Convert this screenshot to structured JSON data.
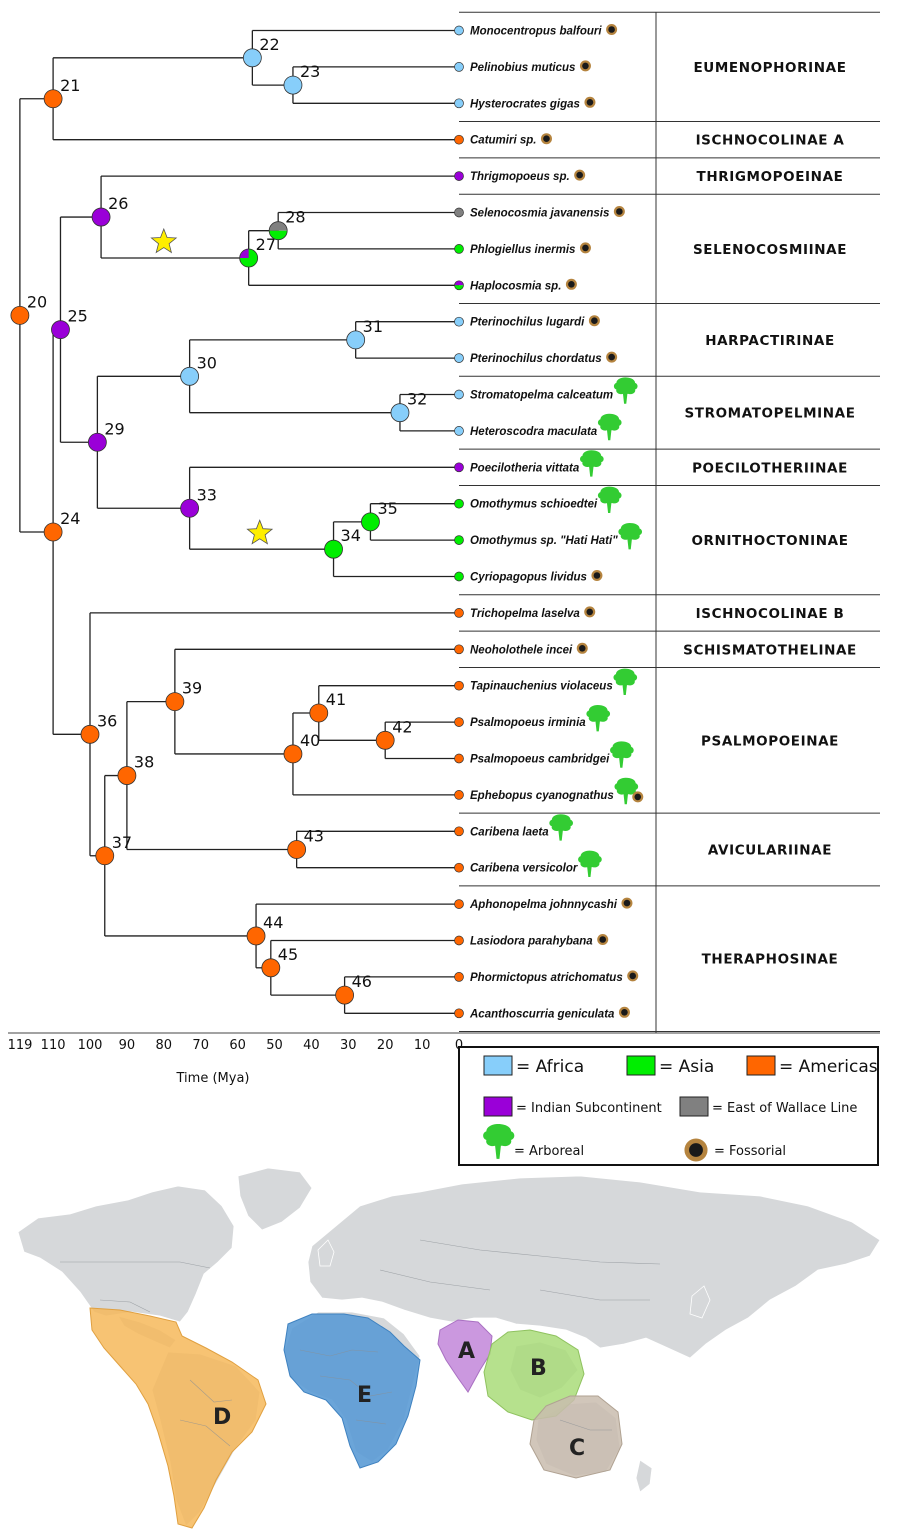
{
  "regions": {
    "africa": {
      "label": "= Africa",
      "color": "#87CEFA"
    },
    "asia": {
      "label": "= Asia",
      "color": "#00EE00"
    },
    "americas": {
      "label": "= Americas",
      "color": "#FF6600"
    },
    "india": {
      "label": "= Indian Subcontinent",
      "color": "#9A00D8"
    },
    "wallace": {
      "label": "= East of Wallace Line",
      "color": "#808080"
    }
  },
  "habits": {
    "arboreal": {
      "label": "= Arboreal",
      "icon": "tree-icon",
      "color": "#33cc33"
    },
    "fossorial": {
      "label": "= Fossorial",
      "icon": "burrow-icon",
      "color": "#222222"
    }
  },
  "axis": {
    "title": "Time (Mya)",
    "ticks": [
      "119",
      "110",
      "100",
      "90",
      "80",
      "70",
      "60",
      "50",
      "40",
      "30",
      "20",
      "10",
      "0"
    ]
  },
  "tips": [
    {
      "name": "Monocentropus balfouri",
      "region": "africa",
      "habit": "fossorial"
    },
    {
      "name": "Pelinobius muticus",
      "region": "africa",
      "habit": "fossorial"
    },
    {
      "name": "Hysterocrates gigas",
      "region": "africa",
      "habit": "fossorial"
    },
    {
      "name": "Catumiri sp.",
      "region": "americas",
      "habit": "fossorial"
    },
    {
      "name": "Thrigmopoeus sp.",
      "region": "india",
      "habit": "fossorial"
    },
    {
      "name": "Selenocosmia javanensis",
      "region": "wallace",
      "habit": "fossorial"
    },
    {
      "name": "Phlogiellus inermis",
      "region": "asia",
      "habit": "fossorial"
    },
    {
      "name": "Haplocosmia sp.",
      "region": "india_asia",
      "habit": "fossorial"
    },
    {
      "name": "Pterinochilus lugardi",
      "region": "africa",
      "habit": "fossorial"
    },
    {
      "name": "Pterinochilus chordatus",
      "region": "africa",
      "habit": "fossorial"
    },
    {
      "name": "Stromatopelma calceatum",
      "region": "africa",
      "habit": "arboreal"
    },
    {
      "name": "Heteroscodra maculata",
      "region": "africa",
      "habit": "arboreal"
    },
    {
      "name": "Poecilotheria vittata",
      "region": "india",
      "habit": "arboreal"
    },
    {
      "name": "Omothymus schioedtei",
      "region": "asia",
      "habit": "arboreal"
    },
    {
      "name": "Omothymus sp. \"Hati Hati\"",
      "region": "asia",
      "habit": "arboreal"
    },
    {
      "name": "Cyriopagopus lividus",
      "region": "asia",
      "habit": "fossorial"
    },
    {
      "name": "Trichopelma laselva",
      "region": "americas",
      "habit": "fossorial"
    },
    {
      "name": "Neoholothele incei",
      "region": "americas",
      "habit": "fossorial"
    },
    {
      "name": "Tapinauchenius violaceus",
      "region": "americas",
      "habit": "arboreal"
    },
    {
      "name": "Psalmopoeus irminia",
      "region": "americas",
      "habit": "arboreal"
    },
    {
      "name": "Psalmopoeus cambridgei",
      "region": "americas",
      "habit": "arboreal"
    },
    {
      "name": "Ephebopus cyanognathus",
      "region": "americas",
      "habit": "both"
    },
    {
      "name": "Caribena laeta",
      "region": "americas",
      "habit": "arboreal"
    },
    {
      "name": "Caribena versicolor",
      "region": "americas",
      "habit": "arboreal"
    },
    {
      "name": "Aphonopelma johnnycashi",
      "region": "americas",
      "habit": "fossorial"
    },
    {
      "name": "Lasiodora parahybana",
      "region": "americas",
      "habit": "fossorial"
    },
    {
      "name": "Phormictopus atrichomatus",
      "region": "americas",
      "habit": "fossorial"
    },
    {
      "name": "Acanthoscurria geniculata",
      "region": "americas",
      "habit": "fossorial"
    }
  ],
  "nodes": [
    {
      "id": "20",
      "age": 119,
      "state": [
        "americas"
      ],
      "children": [
        "21",
        "24"
      ]
    },
    {
      "id": "21",
      "age": 110,
      "state": [
        "americas"
      ],
      "children": [
        "22",
        "t3"
      ]
    },
    {
      "id": "22",
      "age": 56,
      "state": [
        "africa"
      ],
      "children": [
        "t0",
        "23"
      ]
    },
    {
      "id": "23",
      "age": 45,
      "state": [
        "africa"
      ],
      "children": [
        "t1",
        "t2"
      ]
    },
    {
      "id": "24",
      "age": 110,
      "state": [
        "americas"
      ],
      "children": [
        "25",
        "36"
      ]
    },
    {
      "id": "25",
      "age": 108,
      "state": [
        "india"
      ],
      "children": [
        "26",
        "29"
      ]
    },
    {
      "id": "26",
      "age": 97,
      "state": [
        "india"
      ],
      "children": [
        "t4",
        "27"
      ]
    },
    {
      "id": "27",
      "age": 57,
      "state": [
        "india",
        "asia"
      ],
      "children": [
        "28",
        "t7"
      ]
    },
    {
      "id": "28",
      "age": 49,
      "state": [
        "wallace",
        "asia"
      ],
      "children": [
        "t5",
        "t6"
      ]
    },
    {
      "id": "29",
      "age": 98,
      "state": [
        "india"
      ],
      "children": [
        "30",
        "33"
      ]
    },
    {
      "id": "30",
      "age": 73,
      "state": [
        "africa"
      ],
      "children": [
        "31",
        "32"
      ]
    },
    {
      "id": "31",
      "age": 28,
      "state": [
        "africa"
      ],
      "children": [
        "t8",
        "t9"
      ]
    },
    {
      "id": "32",
      "age": 16,
      "state": [
        "africa"
      ],
      "children": [
        "t10",
        "t11"
      ]
    },
    {
      "id": "33",
      "age": 73,
      "state": [
        "india"
      ],
      "children": [
        "t12",
        "34"
      ]
    },
    {
      "id": "34",
      "age": 34,
      "state": [
        "asia"
      ],
      "children": [
        "35",
        "t15"
      ]
    },
    {
      "id": "35",
      "age": 24,
      "state": [
        "asia"
      ],
      "children": [
        "t13",
        "t14"
      ]
    },
    {
      "id": "36",
      "age": 100,
      "state": [
        "americas"
      ],
      "children": [
        "t16",
        "37"
      ]
    },
    {
      "id": "37",
      "age": 96,
      "state": [
        "americas"
      ],
      "children": [
        "38",
        "44"
      ]
    },
    {
      "id": "38",
      "age": 90,
      "state": [
        "americas"
      ],
      "children": [
        "39",
        "43"
      ]
    },
    {
      "id": "39",
      "age": 77,
      "state": [
        "americas"
      ],
      "children": [
        "t17",
        "40"
      ]
    },
    {
      "id": "40",
      "age": 45,
      "state": [
        "americas"
      ],
      "children": [
        "41",
        "t21"
      ]
    },
    {
      "id": "41",
      "age": 38,
      "state": [
        "americas"
      ],
      "children": [
        "t18",
        "42"
      ]
    },
    {
      "id": "42",
      "age": 20,
      "state": [
        "americas"
      ],
      "children": [
        "t19",
        "t20"
      ]
    },
    {
      "id": "43",
      "age": 44,
      "state": [
        "americas"
      ],
      "children": [
        "t22",
        "t23"
      ]
    },
    {
      "id": "44",
      "age": 55,
      "state": [
        "americas"
      ],
      "children": [
        "t24",
        "45"
      ]
    },
    {
      "id": "45",
      "age": 51,
      "state": [
        "americas"
      ],
      "children": [
        "t25",
        "46"
      ]
    },
    {
      "id": "46",
      "age": 31,
      "state": [
        "americas"
      ],
      "children": [
        "t26",
        "t27"
      ]
    }
  ],
  "stars": [
    {
      "name": "star-dispersal-asia",
      "age": 80,
      "on": "27"
    },
    {
      "name": "star-dispersal-ornithoctoninae",
      "age": 54,
      "on": "34"
    }
  ],
  "subfamilies": [
    {
      "label": "EUMENOPHORINAE",
      "from": 0,
      "to": 2
    },
    {
      "label": "ISCHNOCOLINAE A",
      "from": 3,
      "to": 3
    },
    {
      "label": "THRIGMOPOEINAE",
      "from": 4,
      "to": 4
    },
    {
      "label": "SELENOCOSMIINAE",
      "from": 5,
      "to": 7
    },
    {
      "label": "HARPACTIRINAE",
      "from": 8,
      "to": 9
    },
    {
      "label": "STROMATOPELMINAE",
      "from": 10,
      "to": 11
    },
    {
      "label": "POECILOTHERIINAE",
      "from": 12,
      "to": 12
    },
    {
      "label": "ORNITHOCTONINAE",
      "from": 13,
      "to": 15
    },
    {
      "label": "ISCHNOCOLINAE B",
      "from": 16,
      "to": 16
    },
    {
      "label": "SCHISMATOTHELINAE",
      "from": 17,
      "to": 17
    },
    {
      "label": "PSALMOPOEINAE",
      "from": 18,
      "to": 21
    },
    {
      "label": "AVICULARIINAE",
      "from": 22,
      "to": 23
    },
    {
      "label": "THERAPHOSINAE",
      "from": 24,
      "to": 27
    }
  ],
  "map": {
    "regions": [
      {
        "label": "A",
        "color": "#c58ddb"
      },
      {
        "label": "B",
        "color": "#a9dc79"
      },
      {
        "label": "C",
        "color": "#c9bcae"
      },
      {
        "label": "D",
        "color": "#f6b85a"
      },
      {
        "label": "E",
        "color": "#5b9bd5"
      }
    ]
  }
}
